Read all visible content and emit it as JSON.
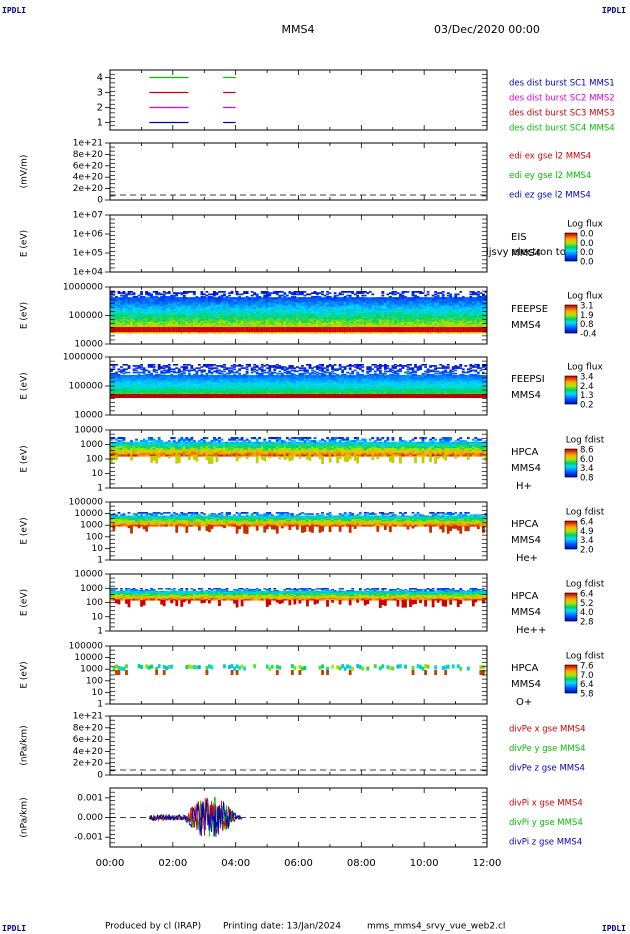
{
  "header": {
    "corner_label": "IPDLI",
    "spacecraft": "MMS4",
    "datetime": "03/Dec/2020 00:00"
  },
  "footer": {
    "produced_by": "Produced by cl (IRAP)",
    "printing_date": "Printing date: 13/Jan/2024",
    "filename": "mms_mms4_srvy_vue_web2.cl"
  },
  "colors": {
    "background": "#ffffff",
    "axis": "#000000",
    "zero_line": "#000000",
    "red": "#d00000",
    "green": "#00c000",
    "blue": "#0000c0",
    "magenta": "#e000e0"
  },
  "chart_data": [
    {
      "id": "burst",
      "type": "line",
      "yticks": [
        "4",
        "3",
        "2",
        "1"
      ],
      "ylim": [
        0.5,
        4.5
      ],
      "xlim": [
        0,
        12
      ],
      "series": [
        {
          "name": "des dist burst SC1 MMS1",
          "color": "#0000c0",
          "y": 1,
          "segments": [
            [
              1.25,
              2.5
            ],
            [
              3.6,
              4.0
            ]
          ]
        },
        {
          "name": "des dist burst SC2 MMS2",
          "color": "#e000e0",
          "y": 2,
          "segments": [
            [
              1.25,
              2.5
            ],
            [
              3.6,
              4.0
            ]
          ]
        },
        {
          "name": "des dist burst SC3 MMS3",
          "color": "#d00000",
          "y": 3,
          "segments": [
            [
              1.25,
              2.5
            ],
            [
              3.6,
              4.0
            ]
          ]
        },
        {
          "name": "des dist burst SC4 MMS4",
          "color": "#00c000",
          "y": 4,
          "segments": [
            [
              1.25,
              2.5
            ],
            [
              3.6,
              4.0
            ]
          ]
        }
      ]
    },
    {
      "id": "edi",
      "type": "line",
      "ylabel": "(mV/m)",
      "yticks": [
        "1e+21",
        "8e+20",
        "6e+20",
        "4e+20",
        "2e+20",
        "0"
      ],
      "ylim": [
        0,
        1.0
      ],
      "series": [
        {
          "name": "edi ex gse l2 MMS4",
          "color": "#d00000"
        },
        {
          "name": "edi ey gse l2 MMS4",
          "color": "#00c000"
        },
        {
          "name": "edi ez gse l2 MMS4",
          "color": "#0000c0"
        }
      ]
    },
    {
      "id": "eis",
      "type": "heatmap",
      "ylabel": "E (eV)",
      "scale": "log",
      "yticks": [
        "1e+07",
        "1e+06",
        "1e+05",
        "1e+04"
      ],
      "ylim": [
        10000,
        10000000
      ],
      "instrument": [
        "EIS",
        "MMS4"
      ],
      "overlay": "ljsvy electron to",
      "colorbar": {
        "title": "Log flux",
        "ticks": [
          "0.0",
          "0.0",
          "0.0",
          "0.0"
        ]
      }
    },
    {
      "id": "feepse",
      "type": "heatmap",
      "ylabel": "E (eV)",
      "scale": "log",
      "yticks": [
        "1000000",
        "100000",
        "10000"
      ],
      "ylim": [
        10000,
        1000000
      ],
      "instrument": [
        "FEEPSE",
        "MMS4"
      ],
      "colorbar": {
        "title": "Log flux",
        "ticks": [
          "3.1",
          "1.9",
          "0.8",
          "-0.4"
        ]
      }
    },
    {
      "id": "feepsi",
      "type": "heatmap",
      "ylabel": "E (eV)",
      "scale": "log",
      "yticks": [
        "1000000",
        "100000",
        "10000"
      ],
      "ylim": [
        10000,
        1000000
      ],
      "instrument": [
        "FEEPSI",
        "MMS4"
      ],
      "colorbar": {
        "title": "Log flux",
        "ticks": [
          "3.4",
          "2.4",
          "1.3",
          "0.2"
        ]
      }
    },
    {
      "id": "hpca_h",
      "type": "heatmap",
      "ylabel": "E (eV)",
      "scale": "log",
      "yticks": [
        "10000",
        "1000",
        "100",
        "10",
        "1"
      ],
      "ylim": [
        1,
        30000
      ],
      "instrument": [
        "HPCA",
        "MMS4",
        "H+"
      ],
      "colorbar": {
        "title": "Log fdist",
        "ticks": [
          "8.6",
          "6.0",
          "3.4",
          "0.8"
        ]
      }
    },
    {
      "id": "hpca_he",
      "type": "heatmap",
      "ylabel": "E (eV)",
      "scale": "log",
      "yticks": [
        "100000",
        "10000",
        "1000",
        "100",
        "10",
        "1"
      ],
      "ylim": [
        1,
        100000
      ],
      "instrument": [
        "HPCA",
        "MMS4",
        "He+"
      ],
      "colorbar": {
        "title": "Log fdist",
        "ticks": [
          "6.4",
          "4.9",
          "3.4",
          "2.0"
        ]
      }
    },
    {
      "id": "hpca_hepp",
      "type": "heatmap",
      "ylabel": "E (eV)",
      "scale": "log",
      "yticks": [
        "10000",
        "1000",
        "100",
        "10",
        "1"
      ],
      "ylim": [
        1,
        10000
      ],
      "instrument": [
        "HPCA",
        "MMS4",
        "He++"
      ],
      "colorbar": {
        "title": "Log fdist",
        "ticks": [
          "6.4",
          "5.2",
          "4.0",
          "2.8"
        ]
      }
    },
    {
      "id": "hpca_o",
      "type": "heatmap",
      "ylabel": "E (eV)",
      "scale": "log",
      "yticks": [
        "100000",
        "10000",
        "1000",
        "100",
        "10",
        "1"
      ],
      "ylim": [
        1,
        100000
      ],
      "instrument": [
        "HPCA",
        "MMS4",
        "O+"
      ],
      "colorbar": {
        "title": "Log fdist",
        "ticks": [
          "7.6",
          "7.0",
          "6.4",
          "5.8"
        ]
      }
    },
    {
      "id": "divpe",
      "type": "line",
      "ylabel": "(nPa/km)",
      "yticks": [
        "1e+21",
        "8e+20",
        "6e+20",
        "4e+20",
        "2e+20",
        "0"
      ],
      "ylim": [
        0,
        1.0
      ],
      "series": [
        {
          "name": "divPe x gse MMS4",
          "color": "#d00000"
        },
        {
          "name": "divPe y gse MMS4",
          "color": "#00c000"
        },
        {
          "name": "divPe z gse MMS4",
          "color": "#0000c0"
        }
      ]
    },
    {
      "id": "divpi",
      "type": "line",
      "ylabel": "(nPa/km)",
      "yticks": [
        "0.001",
        "0.000",
        "-0.001"
      ],
      "ylim": [
        -0.0015,
        0.0015
      ],
      "series": [
        {
          "name": "divPi x gse MMS4",
          "color": "#d00000"
        },
        {
          "name": "divPi y gse MMS4",
          "color": "#00c000"
        },
        {
          "name": "divPi z gse MMS4",
          "color": "#0000c0"
        }
      ],
      "data_interval": [
        1.25,
        4.2
      ],
      "amplitude_range": [
        -0.0012,
        0.0013
      ]
    }
  ],
  "xaxis": {
    "ticks": [
      "00:00",
      "02:00",
      "04:00",
      "06:00",
      "08:00",
      "10:00",
      "12:00"
    ],
    "xlim": [
      0,
      12
    ]
  }
}
